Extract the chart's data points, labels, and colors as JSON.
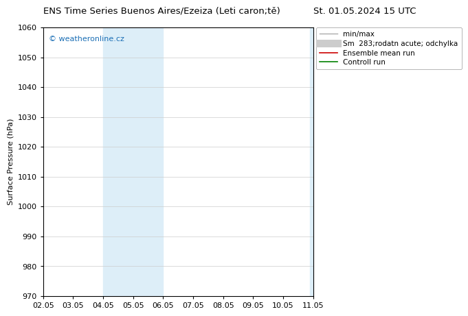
{
  "title": "ENS Time Series Buenos Aires/Ezeiza (Leti caron;tě)     St. 01.05.2024 15 UTC",
  "title_left": "ENS Time Series Buenos Aires/Ezeiza (Leti caron;tě)",
  "title_right": "St. 01.05.2024 15 UTC",
  "ylabel": "Surface Pressure (hPa)",
  "ylim": [
    970,
    1060
  ],
  "yticks": [
    970,
    980,
    990,
    1000,
    1010,
    1020,
    1030,
    1040,
    1050,
    1060
  ],
  "x_labels": [
    "02.05",
    "03.05",
    "04.05",
    "05.05",
    "06.05",
    "07.05",
    "08.05",
    "09.05",
    "10.05",
    "11.05"
  ],
  "x_tick_positions": [
    0,
    1,
    2,
    3,
    4,
    5,
    6,
    7,
    8,
    9
  ],
  "xlim": [
    0,
    9
  ],
  "shaded_regions": [
    {
      "x_start": 2.0,
      "x_end": 4.0,
      "color": "#ddeef8"
    },
    {
      "x_start": 8.9,
      "x_end": 9.0,
      "color": "#ddeef8"
    }
  ],
  "watermark": "© weatheronline.cz",
  "watermark_color": "#1a6eb5",
  "legend_labels": [
    "min/max",
    "Sm  283;rodatn acute; odchylka",
    "Ensemble mean run",
    "Controll run"
  ],
  "legend_colors": [
    "#aaaaaa",
    "#cccccc",
    "#cc0000",
    "#008000"
  ],
  "legend_lw": [
    1.0,
    8,
    1.2,
    1.2
  ],
  "bg_color": "#ffffff",
  "grid_color": "#cccccc",
  "title_fontsize": 9.5,
  "axis_label_fontsize": 8,
  "tick_fontsize": 8,
  "legend_fontsize": 7.5
}
